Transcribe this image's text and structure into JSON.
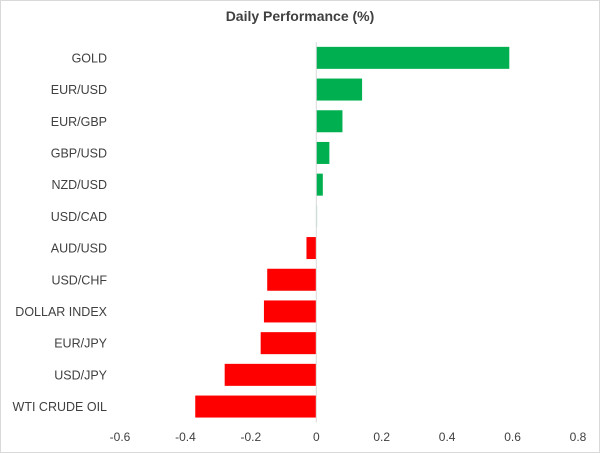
{
  "chart_data": {
    "type": "bar",
    "orientation": "horizontal",
    "title": "Daily Performance (%)",
    "xlabel": "",
    "ylabel": "",
    "xlim": [
      -0.6,
      0.8
    ],
    "ticks": [
      -0.6,
      -0.4,
      -0.2,
      0,
      0.2,
      0.4,
      0.6,
      0.8
    ],
    "tick_labels": [
      "-0.6",
      "-0.4",
      "-0.2",
      "0",
      "0.2",
      "0.4",
      "0.6",
      "0.8"
    ],
    "grid": false,
    "categories": [
      "GOLD",
      "EUR/USD",
      "EUR/GBP",
      "GBP/USD",
      "NZD/USD",
      "USD/CAD",
      "AUD/USD",
      "USD/CHF",
      "DOLLAR INDEX",
      "EUR/JPY",
      "USD/JPY",
      "WTI CRUDE OIL"
    ],
    "values": [
      0.59,
      0.14,
      0.08,
      0.04,
      0.02,
      0.003,
      -0.03,
      -0.15,
      -0.16,
      -0.17,
      -0.28,
      -0.37
    ],
    "colors": {
      "positive": "#00b050",
      "negative": "#ff0000",
      "axis": "#d9d9d9",
      "text": "#404040"
    }
  }
}
